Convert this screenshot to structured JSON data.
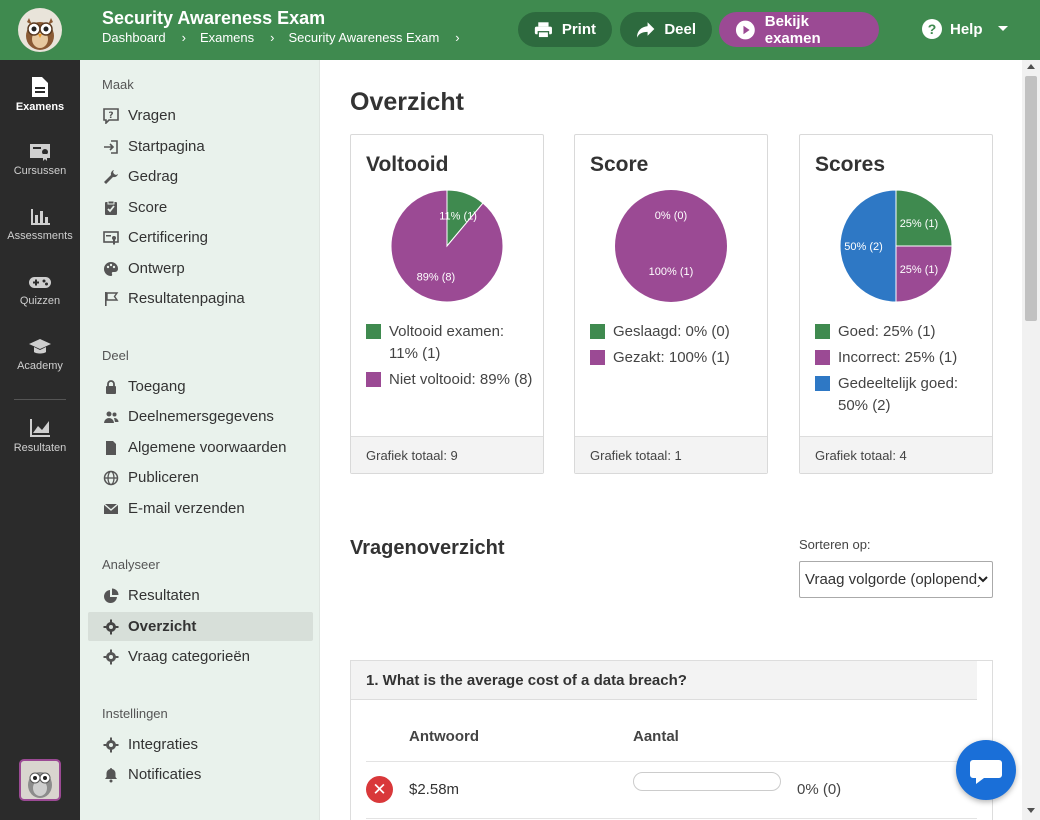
{
  "header": {
    "title": "Security Awareness Exam",
    "breadcrumb": [
      "Dashboard",
      "Examens",
      "Security Awareness Exam"
    ],
    "print_label": "Print",
    "deel_label": "Deel",
    "bekijk_label": "Bekijk examen",
    "help_label": "Help"
  },
  "rail": {
    "items": [
      {
        "label": "Examens",
        "icon": "document-icon",
        "active": true
      },
      {
        "label": "Cursussen",
        "icon": "certificate-icon",
        "active": false
      },
      {
        "label": "Assessments",
        "icon": "bar-chart-icon",
        "active": false
      },
      {
        "label": "Quizzen",
        "icon": "gamepad-icon",
        "active": false
      },
      {
        "label": "Academy",
        "icon": "graduation-cap-icon",
        "active": false
      },
      {
        "label": "Resultaten",
        "icon": "line-chart-icon",
        "active": false
      }
    ]
  },
  "sidebar": {
    "maak": {
      "heading": "Maak",
      "items": [
        {
          "label": "Vragen",
          "icon": "question-icon"
        },
        {
          "label": "Startpagina",
          "icon": "sign-in-icon"
        },
        {
          "label": "Gedrag",
          "icon": "wrench-icon"
        },
        {
          "label": "Score",
          "icon": "clipboard-check-icon"
        },
        {
          "label": "Certificering",
          "icon": "certificate-icon"
        },
        {
          "label": "Ontwerp",
          "icon": "palette-icon"
        },
        {
          "label": "Resultatenpagina",
          "icon": "flag-icon"
        }
      ]
    },
    "deel": {
      "heading": "Deel",
      "items": [
        {
          "label": "Toegang",
          "icon": "lock-icon"
        },
        {
          "label": "Deelnemersgegevens",
          "icon": "users-icon"
        },
        {
          "label": "Algemene voorwaarden",
          "icon": "file-icon"
        },
        {
          "label": "Publiceren",
          "icon": "globe-icon"
        },
        {
          "label": "E-mail verzenden",
          "icon": "envelope-icon"
        }
      ]
    },
    "analyseer": {
      "heading": "Analyseer",
      "items": [
        {
          "label": "Resultaten",
          "icon": "pie-icon"
        },
        {
          "label": "Overzicht",
          "icon": "gear-icon",
          "active": true
        },
        {
          "label": "Vraag categorieën",
          "icon": "gear-icon"
        }
      ]
    },
    "instellingen": {
      "heading": "Instellingen",
      "items": [
        {
          "label": "Integraties",
          "icon": "gear-icon"
        },
        {
          "label": "Notificaties",
          "icon": "bell-icon"
        }
      ]
    }
  },
  "main": {
    "heading": "Overzicht",
    "cards": [
      {
        "title": "Voltooid",
        "footer": "Grafiek totaal: 9"
      },
      {
        "title": "Score",
        "footer": "Grafiek totaal: 1"
      },
      {
        "title": "Scores",
        "footer": "Grafiek totaal: 4"
      }
    ],
    "questions_heading": "Vragenoverzicht",
    "sort_label": "Sorteren op:",
    "sort_value": "Vraag volgorde (oplopend)",
    "question": {
      "title": "1. What is the average cost of a data breach?",
      "col_answer": "Antwoord",
      "col_count": "Aantal",
      "answers": [
        {
          "text": "$2.58m",
          "count_label": "0% (0)",
          "fraction": 0
        }
      ]
    }
  },
  "colors": {
    "green": "#3f8a4f",
    "purple": "#9b4a94",
    "blue": "#2e78c5",
    "red": "#d9383a"
  },
  "chart_data": [
    {
      "type": "pie",
      "title": "Voltooid",
      "labels": [
        "Voltooid examen",
        "Niet voltooid"
      ],
      "values": [
        1,
        8
      ],
      "slice_labels": [
        "11% (1)",
        "89% (8)"
      ],
      "legend": [
        "Voltooid examen: 11% (1)",
        "Niet voltooid: 89% (8)"
      ],
      "colors": [
        "#3f8a4f",
        "#9b4a94"
      ],
      "legend_placement": "bottom"
    },
    {
      "type": "pie",
      "title": "Score",
      "labels": [
        "Geslaagd",
        "Gezakt"
      ],
      "values": [
        0,
        1
      ],
      "slice_labels": [
        "0% (0)",
        "100% (1)"
      ],
      "legend": [
        "Geslaagd: 0% (0)",
        "Gezakt: 100% (1)"
      ],
      "colors": [
        "#3f8a4f",
        "#9b4a94"
      ],
      "legend_placement": "bottom"
    },
    {
      "type": "pie",
      "title": "Scores",
      "labels": [
        "Goed",
        "Incorrect",
        "Gedeeltelijk goed"
      ],
      "values": [
        1,
        1,
        2
      ],
      "slice_labels": [
        "25% (1)",
        "25% (1)",
        "50% (2)"
      ],
      "legend": [
        "Goed: 25% (1)",
        "Incorrect: 25% (1)",
        "Gedeeltelijk goed: 50% (2)"
      ],
      "colors": [
        "#3f8a4f",
        "#9b4a94",
        "#2e78c5"
      ],
      "legend_placement": "bottom"
    }
  ]
}
